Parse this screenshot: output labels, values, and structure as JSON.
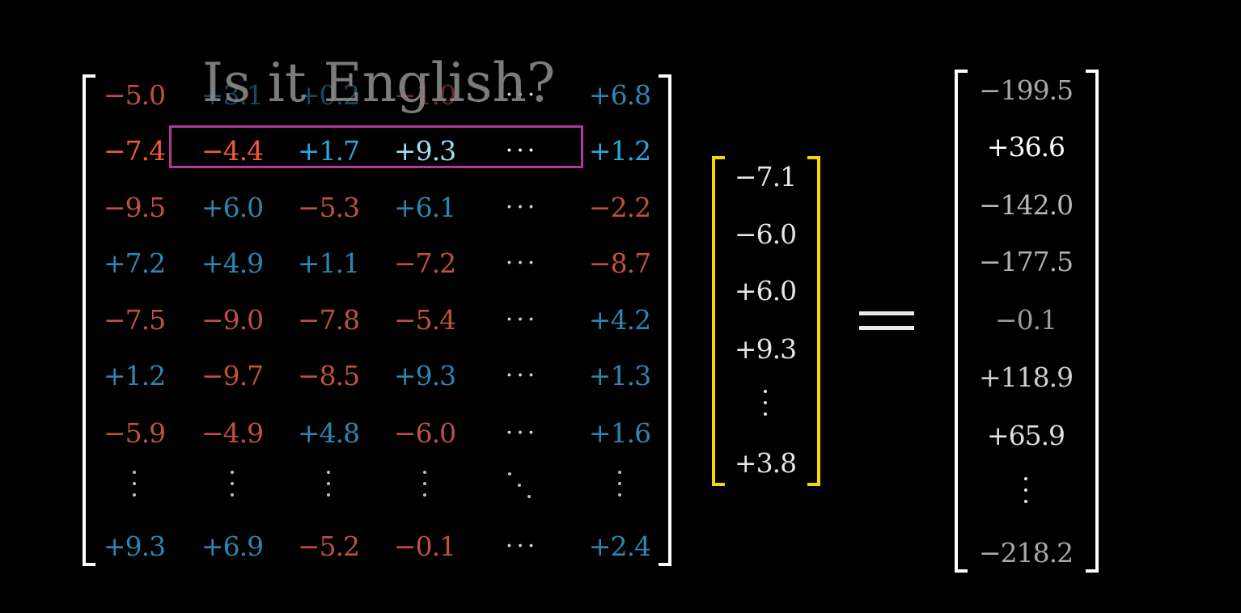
{
  "title": "Is it English?",
  "colors": {
    "negative": "#c0513e",
    "positive": "#2e86b0",
    "highlight_negative": "#f25a3a",
    "highlight_positive": "#2aa8e0",
    "vector_bracket": "#f5d800",
    "matrix_bracket": "#ffffff",
    "highlight_box": "#b0399a",
    "text_light": "#e6e6e6"
  },
  "matrix": {
    "rows": [
      [
        "−5.0",
        "+3.1",
        "+0.2",
        "−1.0",
        "+6.8"
      ],
      [
        "−7.4",
        "−4.4",
        "+1.7",
        "+9.3",
        "+1.2"
      ],
      [
        "−9.5",
        "+6.0",
        "−5.3",
        "+6.1",
        "−2.2"
      ],
      [
        "+7.2",
        "+4.9",
        "+1.1",
        "−7.2",
        "−8.7"
      ],
      [
        "−7.5",
        "−9.0",
        "−7.8",
        "−5.4",
        "+4.2"
      ],
      [
        "+1.2",
        "−9.7",
        "−8.5",
        "+9.3",
        "+1.3"
      ],
      [
        "−5.9",
        "−4.9",
        "+4.8",
        "−6.0",
        "+1.6"
      ],
      [
        "+9.3",
        "+6.9",
        "−5.2",
        "−0.1",
        "+2.4"
      ]
    ],
    "highlighted_row": 1
  },
  "input_vector": [
    "−7.1",
    "−6.0",
    "+6.0",
    "+9.3",
    "+3.8"
  ],
  "output_vector": [
    "−199.5",
    "+36.6",
    "−142.0",
    "−177.5",
    "−0.1",
    "+118.9",
    "+65.9",
    "−218.2"
  ]
}
